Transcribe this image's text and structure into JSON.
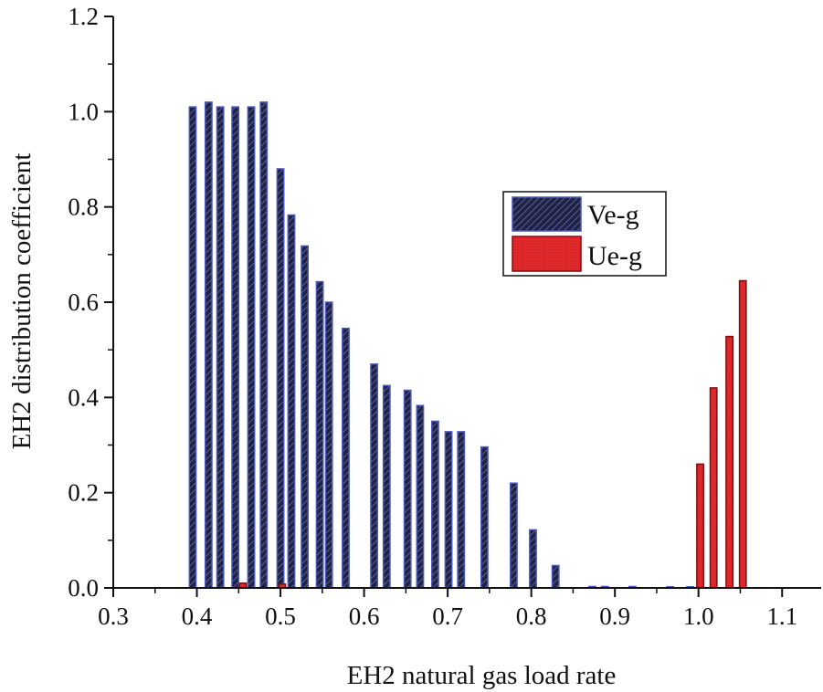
{
  "chart_data": {
    "type": "bar",
    "xlabel": "EH2 natural gas load rate",
    "ylabel": "EH2 distribution coefficient",
    "xlim": [
      0.3,
      1.15
    ],
    "ylim": [
      0,
      1.2
    ],
    "xticks": [
      "0.3",
      "0.4",
      "0.5",
      "0.6",
      "0.7",
      "0.8",
      "0.9",
      "1.0",
      "1.1"
    ],
    "xtick_values": [
      0.3,
      0.4,
      0.5,
      0.6,
      0.7,
      0.8,
      0.9,
      1.0,
      1.1
    ],
    "yticks": [
      "0.0",
      "0.2",
      "0.4",
      "0.6",
      "0.8",
      "1.0",
      "1.2"
    ],
    "ytick_values": [
      0.0,
      0.2,
      0.4,
      0.6,
      0.8,
      1.0,
      1.2
    ],
    "legend_position": "right-center",
    "bar_width": 0.008,
    "series": [
      {
        "name": "Ve-g",
        "fill": "#1f2340",
        "stroke": "#4a57b8",
        "hatch": "#5a66c0",
        "points": [
          {
            "x": 0.395,
            "y": 1.01
          },
          {
            "x": 0.414,
            "y": 1.02
          },
          {
            "x": 0.428,
            "y": 1.01
          },
          {
            "x": 0.446,
            "y": 1.01
          },
          {
            "x": 0.465,
            "y": 1.01
          },
          {
            "x": 0.48,
            "y": 1.02
          },
          {
            "x": 0.5,
            "y": 0.88
          },
          {
            "x": 0.513,
            "y": 0.783
          },
          {
            "x": 0.529,
            "y": 0.718
          },
          {
            "x": 0.547,
            "y": 0.643
          },
          {
            "x": 0.558,
            "y": 0.6
          },
          {
            "x": 0.578,
            "y": 0.545
          },
          {
            "x": 0.612,
            "y": 0.47
          },
          {
            "x": 0.627,
            "y": 0.425
          },
          {
            "x": 0.652,
            "y": 0.415
          },
          {
            "x": 0.667,
            "y": 0.383
          },
          {
            "x": 0.685,
            "y": 0.35
          },
          {
            "x": 0.701,
            "y": 0.328
          },
          {
            "x": 0.716,
            "y": 0.328
          },
          {
            "x": 0.744,
            "y": 0.296
          },
          {
            "x": 0.779,
            "y": 0.22
          },
          {
            "x": 0.802,
            "y": 0.122
          },
          {
            "x": 0.829,
            "y": 0.047
          },
          {
            "x": 0.873,
            "y": 0.003
          },
          {
            "x": 0.888,
            "y": 0.003
          },
          {
            "x": 0.921,
            "y": 0.003
          },
          {
            "x": 0.966,
            "y": 0.002
          },
          {
            "x": 0.99,
            "y": 0.002
          }
        ]
      },
      {
        "name": "Ue-g",
        "fill": "#e0292b",
        "stroke": "#7a0f10",
        "points": [
          {
            "x": 0.455,
            "y": 0.01
          },
          {
            "x": 0.502,
            "y": 0.008
          },
          {
            "x": 1.002,
            "y": 0.26
          },
          {
            "x": 1.018,
            "y": 0.42
          },
          {
            "x": 1.037,
            "y": 0.528
          },
          {
            "x": 1.053,
            "y": 0.645
          }
        ]
      }
    ]
  }
}
